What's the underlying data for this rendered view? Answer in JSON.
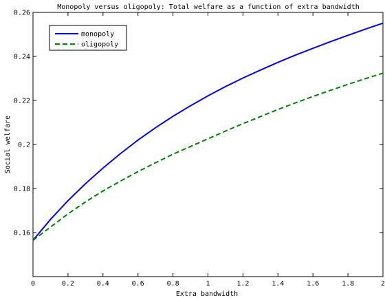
{
  "chart_data": {
    "type": "line",
    "title": "Monopoly versus oligopoly: Total welfare as a function of extra bandwidth",
    "xlabel": "Extra bandwidth",
    "ylabel": "Social welfare",
    "xlim": [
      0,
      2
    ],
    "ylim": [
      0.14,
      0.26
    ],
    "xticks": [
      "0",
      "0.2",
      "0.4",
      "0.6",
      "0.8",
      "1",
      "1.2",
      "1.4",
      "1.6",
      "1.8",
      "2"
    ],
    "yticks": [
      "0.16",
      "0.18",
      "0.2",
      "0.22",
      "0.24",
      "0.26"
    ],
    "grid": false,
    "legend_position": "top-left",
    "series": [
      {
        "name": "monopoly",
        "color": "#0000ff",
        "style": "solid",
        "x": [
          0,
          0.1,
          0.2,
          0.3,
          0.4,
          0.5,
          0.6,
          0.7,
          0.8,
          0.9,
          1.0,
          1.1,
          1.2,
          1.3,
          1.4,
          1.5,
          1.6,
          1.7,
          1.8,
          1.9,
          2.0
        ],
        "y": [
          0.1565,
          0.166,
          0.1745,
          0.1822,
          0.1893,
          0.1959,
          0.202,
          0.2076,
          0.2128,
          0.2176,
          0.2221,
          0.2263,
          0.2302,
          0.2338,
          0.2373,
          0.2406,
          0.2437,
          0.2467,
          0.2496,
          0.2524,
          0.2551
        ]
      },
      {
        "name": "oligopoly",
        "color": "#007f00",
        "style": "dashed",
        "x": [
          0,
          0.1,
          0.2,
          0.3,
          0.4,
          0.5,
          0.6,
          0.7,
          0.8,
          0.9,
          1.0,
          1.1,
          1.2,
          1.3,
          1.4,
          1.5,
          1.6,
          1.7,
          1.8,
          1.9,
          2.0
        ],
        "y": [
          0.1565,
          0.1625,
          0.1685,
          0.1739,
          0.1789,
          0.1834,
          0.1877,
          0.1917,
          0.1956,
          0.1991,
          0.2026,
          0.2061,
          0.2095,
          0.2127,
          0.2159,
          0.2189,
          0.2218,
          0.2246,
          0.2273,
          0.2299,
          0.2324
        ]
      }
    ]
  }
}
